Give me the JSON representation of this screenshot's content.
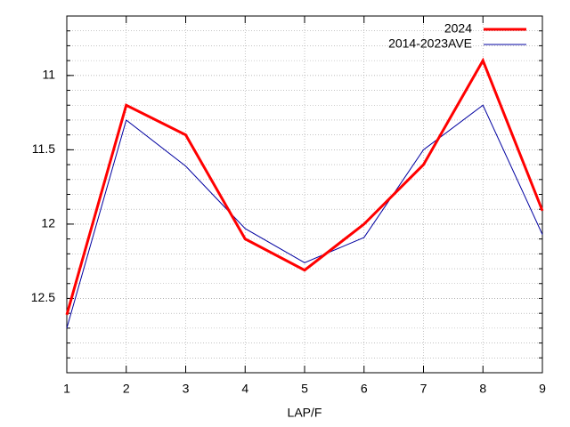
{
  "chart_data": {
    "type": "line",
    "x_label": "LAP/F",
    "x": [
      1,
      2,
      3,
      4,
      5,
      6,
      7,
      8,
      9
    ],
    "xlim": [
      1,
      9
    ],
    "xticks": [
      1,
      2,
      3,
      4,
      5,
      6,
      7,
      8,
      9
    ],
    "ylim": [
      10.6,
      13
    ],
    "y_reversed": true,
    "yticks": [
      11,
      11.5,
      12,
      12.5
    ],
    "y_minor_step": 0.1,
    "grid": true,
    "legend": "top-right",
    "series": [
      {
        "name": "2024",
        "color": "#ff0000",
        "width": 3,
        "values": [
          12.61,
          11.2,
          11.4,
          12.1,
          12.31,
          12.0,
          11.6,
          10.9,
          11.91
        ]
      },
      {
        "name": "2014-2023AVE",
        "color": "#0000a0",
        "width": 1,
        "values": [
          12.7,
          11.3,
          11.61,
          12.03,
          12.26,
          12.09,
          11.5,
          11.2,
          12.07
        ]
      }
    ]
  }
}
